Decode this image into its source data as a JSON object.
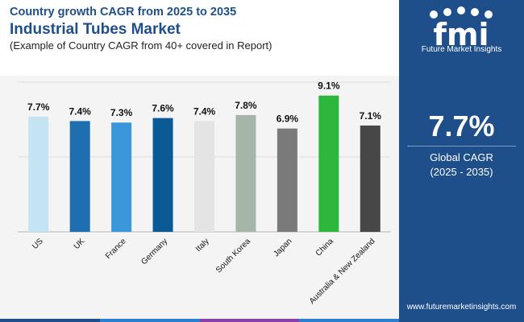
{
  "header": {
    "subtitle_top": "Country growth CAGR from 2025 to 2035",
    "title": "Industrial Tubes Market",
    "note": "(Example of Country CAGR from 40+ covered in Report)"
  },
  "sidebar": {
    "logo_text": "fmi",
    "logo_sub": "Future Market Insights",
    "global_value": "7.7%",
    "global_label_1": "Global CAGR",
    "global_label_2": "(2025 - 2035)",
    "website": "www.futuremarketinsights.com"
  },
  "colors": {
    "brand": "#1f4f8b",
    "accent_bar": [
      "#1f4f8b",
      "#2a7fd0",
      "#8b3fa8",
      "#2a7fd0"
    ]
  },
  "chart_data": {
    "type": "bar",
    "categories": [
      "US",
      "UK",
      "France",
      "Germany",
      "Italy",
      "South Korea",
      "Japan",
      "China",
      "Australia & New Zealand"
    ],
    "values": [
      7.7,
      7.4,
      7.3,
      7.6,
      7.4,
      7.8,
      6.9,
      9.1,
      7.1
    ],
    "labels": [
      "7.7%",
      "7.4%",
      "7.3%",
      "7.6%",
      "7.4%",
      "7.8%",
      "6.9%",
      "9.1%",
      "7.1%"
    ],
    "colors": [
      "#c4e3f3",
      "#1f6fb0",
      "#3b97d9",
      "#0c5a95",
      "#e4e4e4",
      "#a5b5a8",
      "#7a7a7a",
      "#2db83d",
      "#474747"
    ],
    "ylim": [
      0,
      10
    ],
    "grid": true,
    "legend": "none"
  }
}
